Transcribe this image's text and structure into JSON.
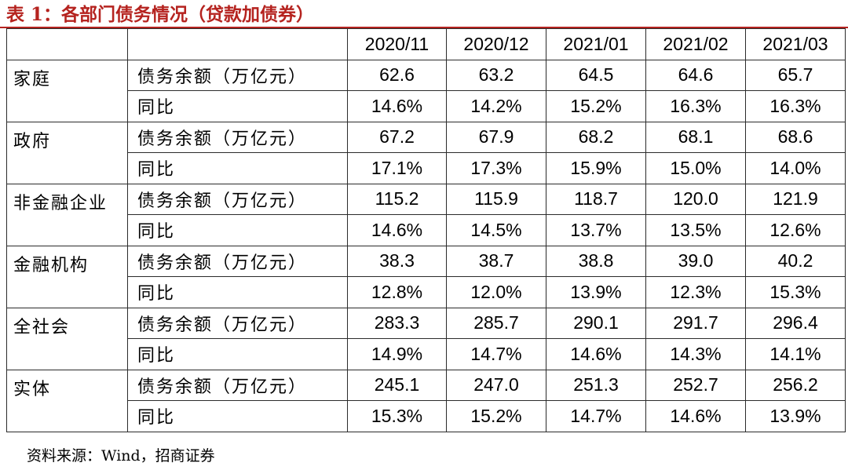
{
  "title": "表 1：各部门债务情况（贷款加债券）",
  "table": {
    "columns": [
      "2020/11",
      "2020/12",
      "2021/01",
      "2021/02",
      "2021/03"
    ],
    "sectors": [
      {
        "name": "家庭",
        "rows": [
          {
            "metric": "债务余额（万亿元）",
            "values": [
              "62.6",
              "63.2",
              "64.5",
              "64.6",
              "65.7"
            ]
          },
          {
            "metric": "同比",
            "values": [
              "14.6%",
              "14.2%",
              "15.2%",
              "16.3%",
              "16.3%"
            ]
          }
        ]
      },
      {
        "name": "政府",
        "rows": [
          {
            "metric": "债务余额（万亿元）",
            "values": [
              "67.2",
              "67.9",
              "68.2",
              "68.1",
              "68.6"
            ]
          },
          {
            "metric": "同比",
            "values": [
              "17.1%",
              "17.3%",
              "15.9%",
              "15.0%",
              "14.0%"
            ]
          }
        ]
      },
      {
        "name": "非金融企业",
        "rows": [
          {
            "metric": "债务余额（万亿元）",
            "values": [
              "115.2",
              "115.9",
              "118.7",
              "120.0",
              "121.9"
            ]
          },
          {
            "metric": "同比",
            "values": [
              "14.6%",
              "14.5%",
              "13.7%",
              "13.5%",
              "12.6%"
            ]
          }
        ]
      },
      {
        "name": "金融机构",
        "rows": [
          {
            "metric": "债务余额（万亿元）",
            "values": [
              "38.3",
              "38.7",
              "38.8",
              "39.0",
              "40.2"
            ]
          },
          {
            "metric": "同比",
            "values": [
              "12.8%",
              "12.0%",
              "13.9%",
              "12.3%",
              "15.3%"
            ]
          }
        ]
      },
      {
        "name": "全社会",
        "rows": [
          {
            "metric": "债务余额（万亿元）",
            "values": [
              "283.3",
              "285.7",
              "290.1",
              "291.7",
              "296.4"
            ]
          },
          {
            "metric": "同比",
            "values": [
              "14.9%",
              "14.7%",
              "14.6%",
              "14.3%",
              "14.1%"
            ]
          }
        ]
      },
      {
        "name": "实体",
        "rows": [
          {
            "metric": "债务余额（万亿元）",
            "values": [
              "245.1",
              "247.0",
              "251.3",
              "252.7",
              "256.2"
            ]
          },
          {
            "metric": "同比",
            "values": [
              "15.3%",
              "15.2%",
              "14.7%",
              "14.6%",
              "13.9%"
            ]
          }
        ]
      }
    ]
  },
  "source": "资料来源：Wind，招商证券"
}
